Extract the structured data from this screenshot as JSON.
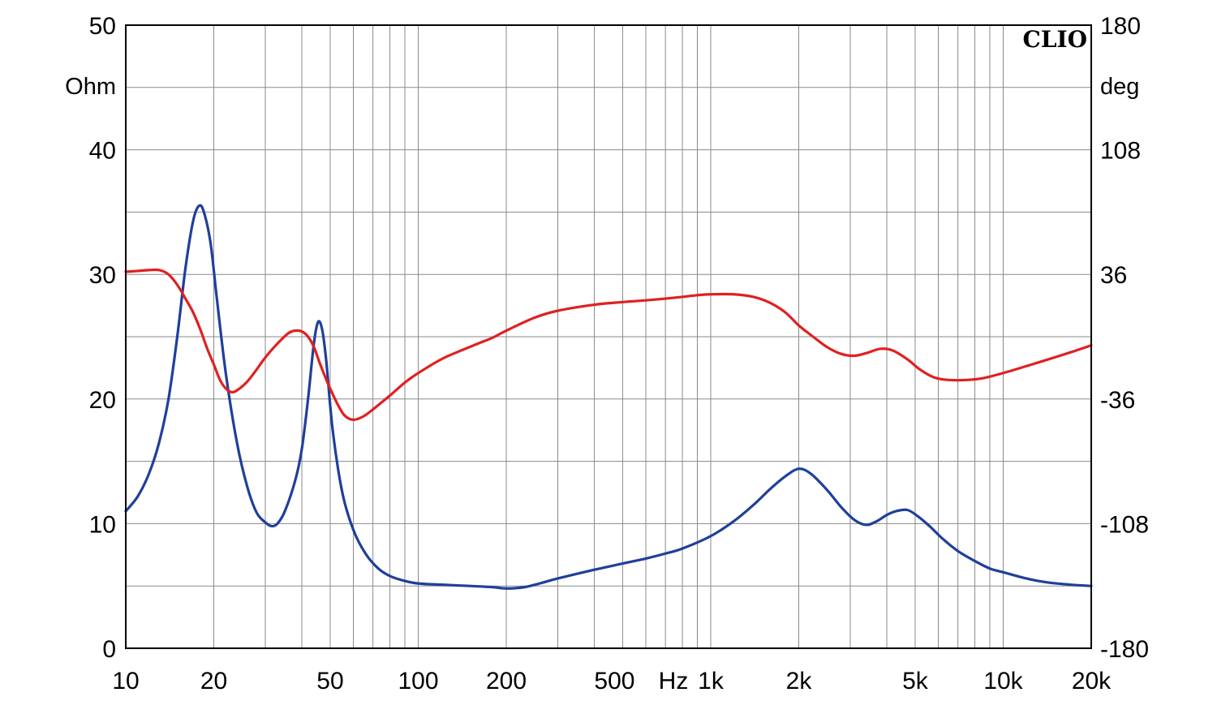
{
  "chart_data": {
    "type": "line",
    "brand": "CLIO",
    "x_scale": "log",
    "xlim": [
      10,
      20000
    ],
    "x_ticks": [
      {
        "value": 10,
        "label": "10"
      },
      {
        "value": 20,
        "label": "20"
      },
      {
        "value": 50,
        "label": "50"
      },
      {
        "value": 100,
        "label": "100"
      },
      {
        "value": 200,
        "label": "200"
      },
      {
        "value": 500,
        "label": "500"
      },
      {
        "value": 1000,
        "label": "1k"
      },
      {
        "value": 2000,
        "label": "2k"
      },
      {
        "value": 5000,
        "label": "5k"
      },
      {
        "value": 10000,
        "label": "10k"
      },
      {
        "value": 20000,
        "label": "20k"
      }
    ],
    "x_unit_label": "Hz",
    "y_left": {
      "unit": "Ohm",
      "lim": [
        0,
        50
      ],
      "ticks": [
        0,
        10,
        20,
        30,
        40,
        50
      ]
    },
    "y_right": {
      "unit": "deg",
      "lim": [
        -180,
        180
      ],
      "ticks": [
        -180,
        -108,
        -36,
        36,
        108,
        180
      ]
    },
    "grid": true,
    "series": [
      {
        "axis": "left",
        "color": "#1f3f9a",
        "points": [
          [
            10,
            11.0
          ],
          [
            11,
            12.2
          ],
          [
            12,
            14.0
          ],
          [
            13,
            16.5
          ],
          [
            14,
            20.0
          ],
          [
            15,
            25.0
          ],
          [
            16,
            30.5
          ],
          [
            17,
            34.3
          ],
          [
            17.8,
            35.5
          ],
          [
            18.5,
            35.0
          ],
          [
            19.5,
            32.5
          ],
          [
            20.5,
            28.0
          ],
          [
            22,
            22.0
          ],
          [
            24,
            16.5
          ],
          [
            26,
            13.0
          ],
          [
            28,
            10.9
          ],
          [
            30,
            10.1
          ],
          [
            31.5,
            9.8
          ],
          [
            33,
            10.0
          ],
          [
            35,
            11.0
          ],
          [
            38,
            13.5
          ],
          [
            40,
            16.0
          ],
          [
            42,
            20.0
          ],
          [
            44,
            24.5
          ],
          [
            45.5,
            26.2
          ],
          [
            47,
            25.5
          ],
          [
            48.5,
            23.0
          ],
          [
            51,
            17.5
          ],
          [
            55,
            12.5
          ],
          [
            60,
            9.5
          ],
          [
            66,
            7.6
          ],
          [
            73,
            6.4
          ],
          [
            80,
            5.8
          ],
          [
            90,
            5.4
          ],
          [
            100,
            5.2
          ],
          [
            120,
            5.1
          ],
          [
            150,
            5.0
          ],
          [
            180,
            4.9
          ],
          [
            200,
            4.8
          ],
          [
            230,
            4.9
          ],
          [
            260,
            5.2
          ],
          [
            300,
            5.6
          ],
          [
            400,
            6.3
          ],
          [
            500,
            6.8
          ],
          [
            600,
            7.2
          ],
          [
            700,
            7.6
          ],
          [
            800,
            8.0
          ],
          [
            1000,
            9.0
          ],
          [
            1200,
            10.2
          ],
          [
            1400,
            11.5
          ],
          [
            1600,
            12.8
          ],
          [
            1800,
            13.8
          ],
          [
            2000,
            14.4
          ],
          [
            2200,
            14.0
          ],
          [
            2500,
            12.7
          ],
          [
            2800,
            11.3
          ],
          [
            3100,
            10.3
          ],
          [
            3400,
            9.9
          ],
          [
            3700,
            10.2
          ],
          [
            4000,
            10.7
          ],
          [
            4300,
            11.0
          ],
          [
            4700,
            11.1
          ],
          [
            5100,
            10.6
          ],
          [
            5600,
            9.8
          ],
          [
            6200,
            8.8
          ],
          [
            7000,
            7.8
          ],
          [
            8000,
            7.0
          ],
          [
            9000,
            6.4
          ],
          [
            10000,
            6.1
          ],
          [
            12000,
            5.6
          ],
          [
            14000,
            5.3
          ],
          [
            17000,
            5.1
          ],
          [
            20000,
            5.0
          ]
        ]
      },
      {
        "axis": "right",
        "color": "#e02020",
        "points": [
          [
            10,
            37.5
          ],
          [
            11,
            38.0
          ],
          [
            12,
            38.5
          ],
          [
            13,
            38.5
          ],
          [
            14,
            36.0
          ],
          [
            15,
            30.0
          ],
          [
            16,
            22.0
          ],
          [
            17,
            14.0
          ],
          [
            18,
            4.0
          ],
          [
            19,
            -7.0
          ],
          [
            20,
            -16.0
          ],
          [
            21,
            -25.0
          ],
          [
            22,
            -30.0
          ],
          [
            23,
            -32.0
          ],
          [
            24,
            -31.0
          ],
          [
            26,
            -26.0
          ],
          [
            28,
            -19.0
          ],
          [
            30,
            -12.0
          ],
          [
            33,
            -4.0
          ],
          [
            36,
            2.0
          ],
          [
            38,
            3.5
          ],
          [
            40,
            3.0
          ],
          [
            42,
            0.0
          ],
          [
            44,
            -6.0
          ],
          [
            46,
            -15.0
          ],
          [
            48,
            -23.0
          ],
          [
            50,
            -30.0
          ],
          [
            53,
            -39.0
          ],
          [
            56,
            -45.5
          ],
          [
            60,
            -48.0
          ],
          [
            65,
            -46.0
          ],
          [
            70,
            -42.0
          ],
          [
            80,
            -34.0
          ],
          [
            90,
            -26.5
          ],
          [
            100,
            -21.0
          ],
          [
            120,
            -13.0
          ],
          [
            140,
            -8.0
          ],
          [
            160,
            -4.0
          ],
          [
            180,
            -0.5
          ],
          [
            200,
            3.5
          ],
          [
            250,
            11.0
          ],
          [
            300,
            15.0
          ],
          [
            400,
            18.5
          ],
          [
            500,
            20.0
          ],
          [
            600,
            21.0
          ],
          [
            700,
            22.0
          ],
          [
            800,
            23.0
          ],
          [
            900,
            24.0
          ],
          [
            1000,
            24.5
          ],
          [
            1200,
            24.5
          ],
          [
            1400,
            23.0
          ],
          [
            1600,
            19.5
          ],
          [
            1800,
            14.0
          ],
          [
            2000,
            6.5
          ],
          [
            2200,
            1.0
          ],
          [
            2500,
            -6.0
          ],
          [
            2800,
            -10.0
          ],
          [
            3100,
            -11.0
          ],
          [
            3400,
            -9.5
          ],
          [
            3800,
            -7.0
          ],
          [
            4200,
            -8.0
          ],
          [
            4700,
            -13.0
          ],
          [
            5200,
            -19.0
          ],
          [
            5800,
            -23.5
          ],
          [
            6500,
            -25.0
          ],
          [
            7500,
            -25.0
          ],
          [
            8500,
            -24.0
          ],
          [
            10000,
            -21.0
          ],
          [
            12000,
            -17.0
          ],
          [
            14000,
            -13.5
          ],
          [
            17000,
            -9.0
          ],
          [
            20000,
            -5.0
          ]
        ]
      }
    ]
  }
}
